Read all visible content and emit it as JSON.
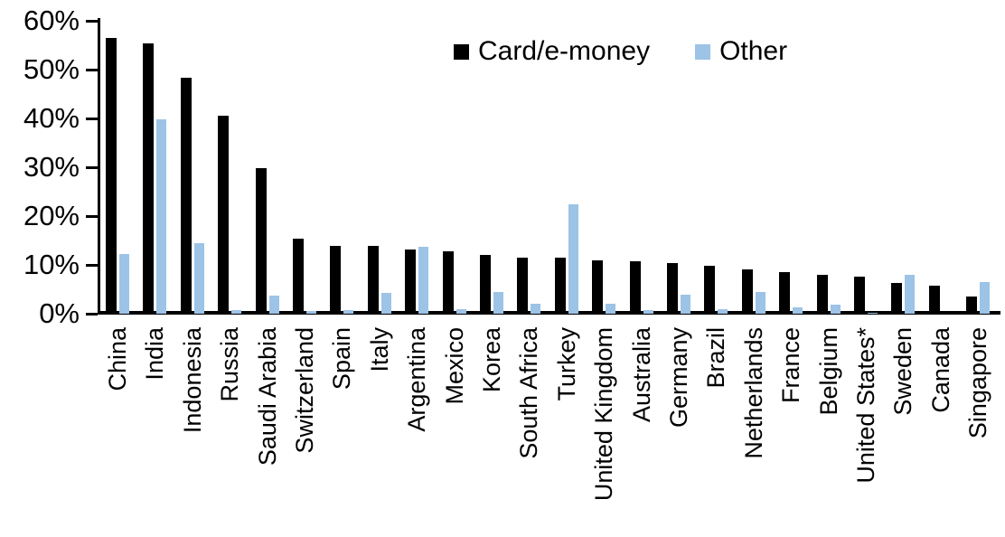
{
  "chart_data": {
    "type": "bar",
    "title": "",
    "xlabel": "",
    "ylabel": "",
    "ylim": [
      0,
      60
    ],
    "ytick_step": 10,
    "ytick_labels": [
      "0%",
      "10%",
      "20%",
      "30%",
      "40%",
      "50%",
      "60%"
    ],
    "grid": false,
    "legend_position": "top-center",
    "categories": [
      "China",
      "India",
      "Indonesia",
      "Russia",
      "Saudi Arabia",
      "Switzerland",
      "Spain",
      "Italy",
      "Argentina",
      "Mexico",
      "Korea",
      "South Africa",
      "Turkey",
      "United Kingdom",
      "Australia",
      "Germany",
      "Brazil",
      "Netherlands",
      "France",
      "Belgium",
      "United States*",
      "Sweden",
      "Canada",
      "Singapore"
    ],
    "series": [
      {
        "name": "Card/e-money",
        "color": "#000000",
        "values": [
          56.4,
          55.3,
          48.4,
          40.6,
          29.9,
          15.4,
          13.9,
          13.9,
          13.2,
          12.7,
          12.1,
          11.5,
          11.4,
          10.9,
          10.7,
          10.4,
          9.9,
          9.1,
          8.5,
          7.9,
          7.6,
          6.3,
          5.7,
          3.6
        ]
      },
      {
        "name": "Other",
        "color": "#9dc3e6",
        "values": [
          12.2,
          39.8,
          14.4,
          0.8,
          3.7,
          0.6,
          0.8,
          4.2,
          13.7,
          1.0,
          4.4,
          2.0,
          22.5,
          2.1,
          0.8,
          3.8,
          0.9,
          4.5,
          1.3,
          1.8,
          0.2,
          7.9,
          0.0,
          6.4
        ]
      }
    ]
  }
}
